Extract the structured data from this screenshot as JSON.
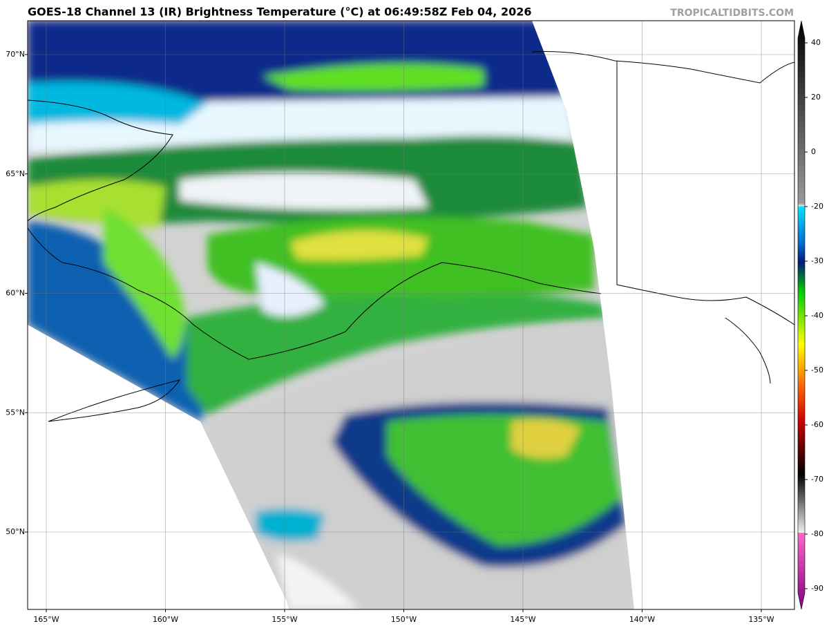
{
  "header": {
    "title": "GOES-18 Channel 13 (IR) Brightness Temperature (°C) at 06:49:58Z Feb 04, 2026",
    "watermark": "TROPICALTIDBITS.COM"
  },
  "map": {
    "lat_labels": [
      "70°N",
      "65°N",
      "60°N",
      "55°N",
      "50°N"
    ],
    "lon_labels": [
      "165°W",
      "160°W",
      "155°W",
      "150°W",
      "145°W",
      "140°W",
      "135°W"
    ]
  },
  "colorbar": {
    "ticks": [
      40,
      20,
      0,
      -20,
      -30,
      -40,
      -50,
      -60,
      -70,
      -80,
      -90
    ]
  }
}
